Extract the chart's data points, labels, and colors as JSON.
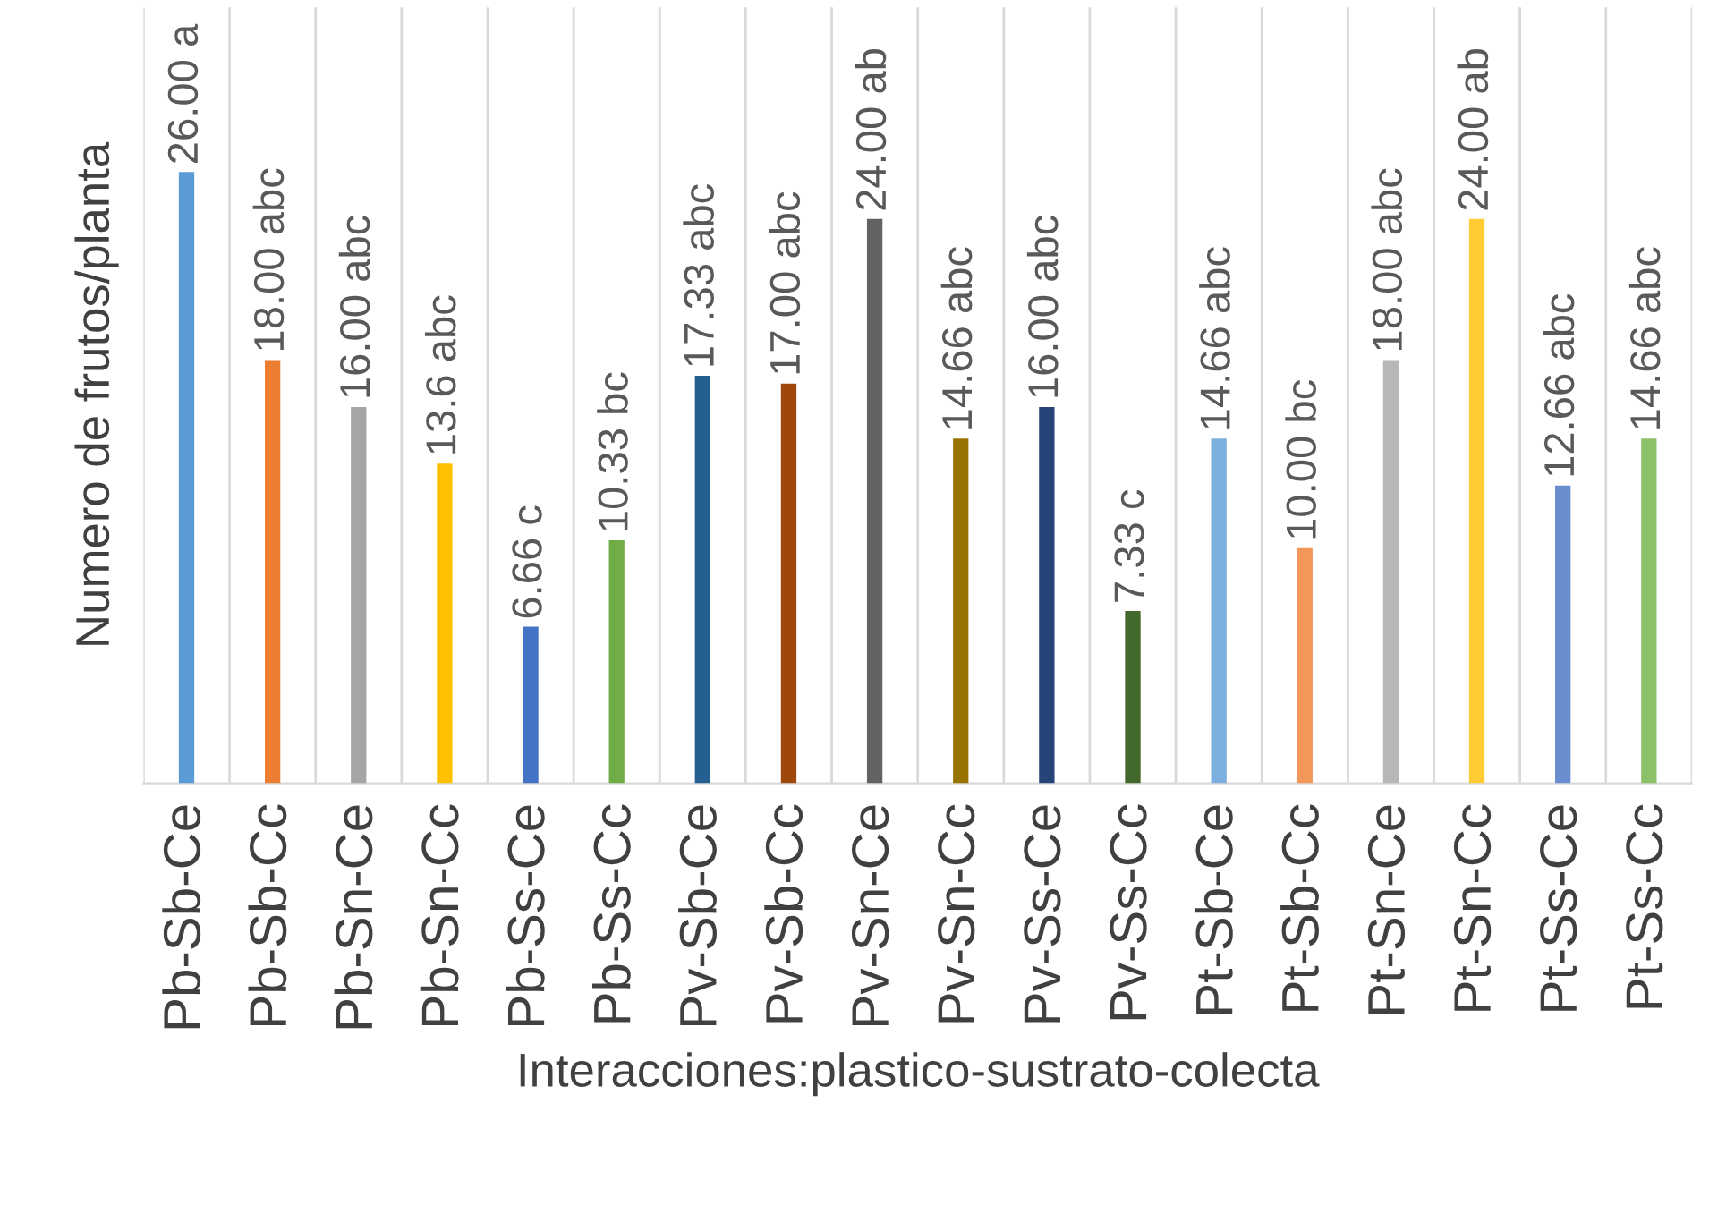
{
  "chart_data": {
    "type": "bar",
    "xlabel": "Interacciones:plastico-sustrato-colecta",
    "ylabel": "Numero de frutos/planta",
    "categories": [
      "Pb-Sb-Ce",
      "Pb-Sb-Cc",
      "Pb-Sn-Ce",
      "Pb-Sn-Cc",
      "Pb-Ss-Ce",
      "Pb-Ss-Cc",
      "Pv-Sb-Ce",
      "Pv-Sb-Cc",
      "Pv-Sn-Ce",
      "Pv-Sn-Cc",
      "Pv-Ss-Ce",
      "Pv-Ss-Cc",
      "Pt-Sb-Ce",
      "Pt-Sb-Cc",
      "Pt-Sn-Ce",
      "Pt-Sn-Cc",
      "Pt-Ss-Ce",
      "Pt-Ss-Cc"
    ],
    "values": [
      26.0,
      18.0,
      16.0,
      13.6,
      6.66,
      10.33,
      17.33,
      17.0,
      24.0,
      14.66,
      16.0,
      7.33,
      14.66,
      10.0,
      18.0,
      24.0,
      12.66,
      14.66
    ],
    "value_labels": [
      "26.00 a",
      "18.00 abc",
      "16.00 abc",
      "13.6 abc",
      "6.66 c",
      "10.33 bc",
      "17.33 abc",
      "17.00 abc",
      "24.00 ab",
      "14.66 abc",
      "16.00 abc",
      "7.33 c",
      "14.66 abc",
      "10.00 bc",
      "18.00 abc",
      "24.00 ab",
      "12.66 abc",
      "14.66 abc"
    ],
    "colors": [
      "#5b9bd5",
      "#ed7d31",
      "#a5a5a5",
      "#ffc000",
      "#4472c4",
      "#70ad47",
      "#255e91",
      "#9e480e",
      "#636363",
      "#997300",
      "#264478",
      "#43682b",
      "#7cafdd",
      "#f1975a",
      "#b7b7b7",
      "#ffcd33",
      "#698ed0",
      "#8cc168"
    ],
    "ylim": [
      0,
      33
    ],
    "tick_labels": "x",
    "grid": "x",
    "legend": false
  }
}
